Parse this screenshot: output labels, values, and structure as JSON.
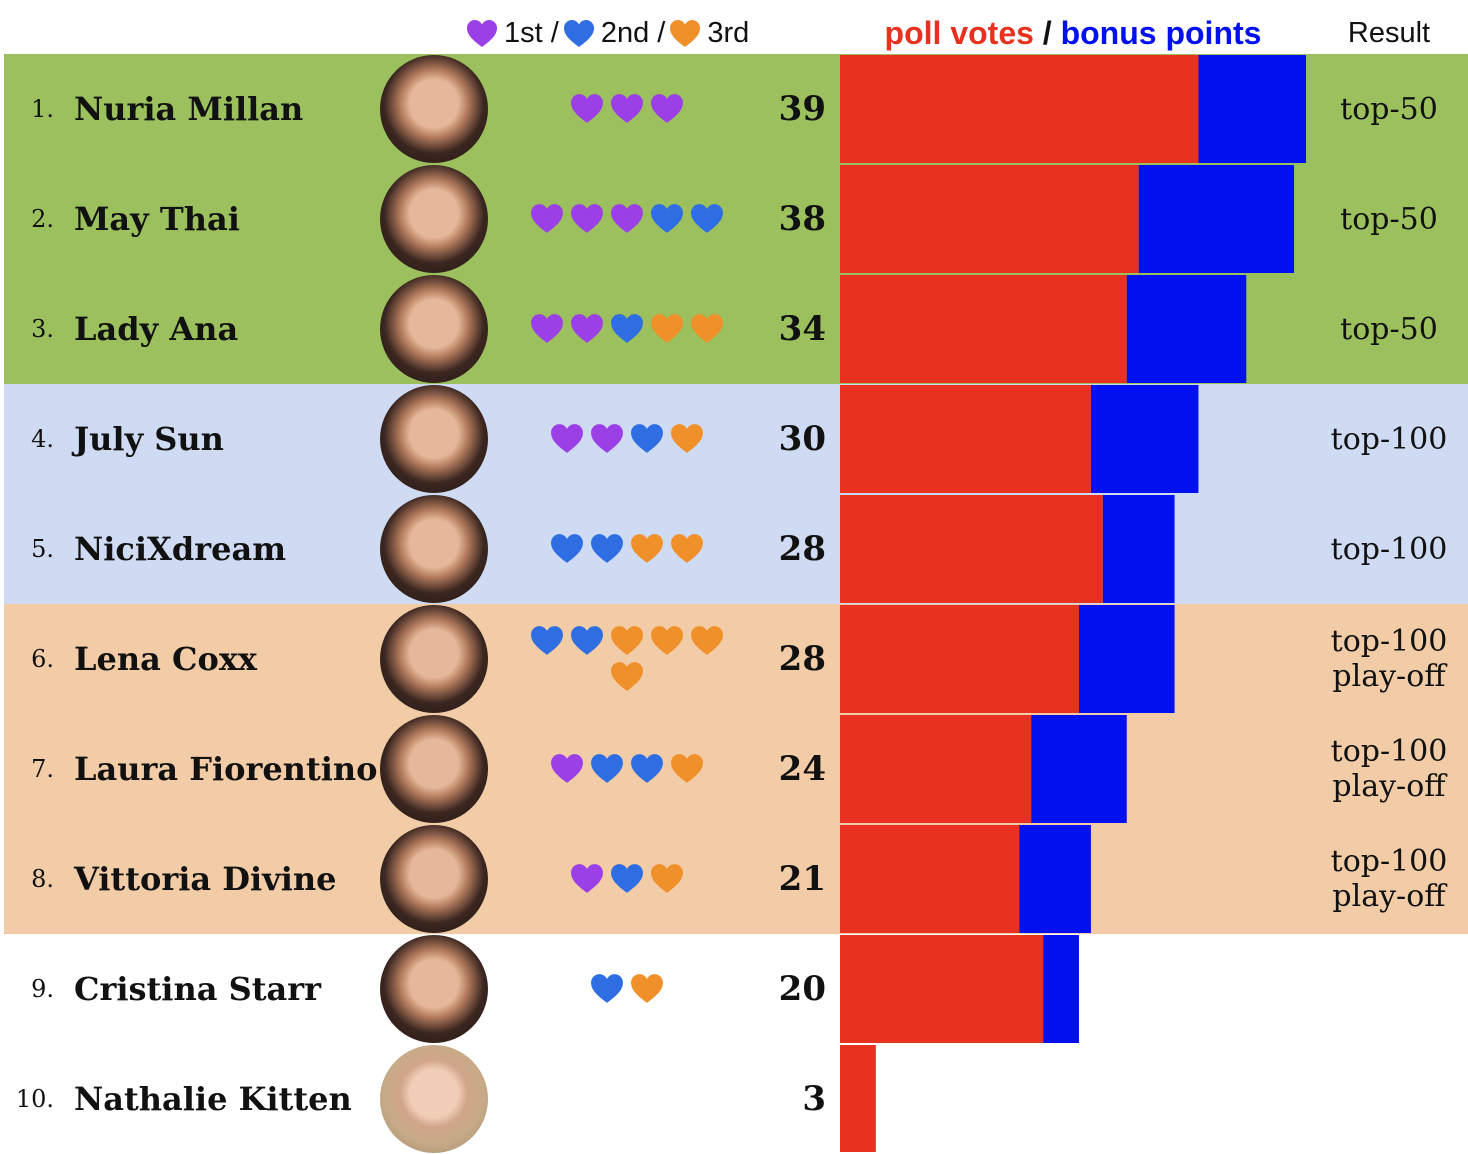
{
  "header": {
    "first": "1st",
    "second": "2nd",
    "third": "3rd",
    "slash": "/",
    "poll_votes": "poll votes",
    "bonus_points": "bonus points",
    "result": "Result"
  },
  "colors": {
    "first_heart": "#9b3fe6",
    "second_heart": "#2f6de2",
    "third_heart": "#f0902a",
    "poll_bar": "#e8321f",
    "bonus_bar": "#0010ee",
    "band_top50": "#9bc05d",
    "band_top100": "#cfdbf3",
    "band_playoff": "#f2cca6",
    "band_none": "#ffffff"
  },
  "chart_data": {
    "type": "bar",
    "orientation": "horizontal",
    "stacked": true,
    "categories": [
      "Nuria Millan",
      "May Thai",
      "Lady Ana",
      "July Sun",
      "NiciXdream",
      "Lena Coxx",
      "Laura Fiorentino",
      "Vittoria Divine",
      "Cristina Starr",
      "Nathalie Kitten"
    ],
    "series": [
      {
        "name": "poll votes",
        "values": [
          30,
          25,
          24,
          21,
          22,
          20,
          16,
          15,
          17,
          3
        ]
      },
      {
        "name": "bonus points",
        "values": [
          9,
          13,
          10,
          9,
          6,
          8,
          8,
          6,
          3,
          0
        ]
      }
    ],
    "totals": [
      39,
      38,
      34,
      30,
      28,
      28,
      24,
      21,
      20,
      3
    ],
    "xlim": [
      0,
      39
    ]
  },
  "rows": [
    {
      "rank": "1.",
      "name": "Nuria Millan",
      "hearts": [
        "first",
        "first",
        "first"
      ],
      "total": "39",
      "result": [
        "top-50"
      ],
      "band": "top50",
      "avatar": "dark"
    },
    {
      "rank": "2.",
      "name": "May Thai",
      "hearts": [
        "first",
        "first",
        "first",
        "second",
        "second"
      ],
      "total": "38",
      "result": [
        "top-50"
      ],
      "band": "top50",
      "avatar": "dark"
    },
    {
      "rank": "3.",
      "name": "Lady Ana",
      "hearts": [
        "first",
        "first",
        "second",
        "third",
        "third"
      ],
      "total": "34",
      "result": [
        "top-50"
      ],
      "band": "top50",
      "avatar": "dark"
    },
    {
      "rank": "4.",
      "name": "July Sun",
      "hearts": [
        "first",
        "first",
        "second",
        "third"
      ],
      "total": "30",
      "result": [
        "top-100"
      ],
      "band": "top100",
      "avatar": "dark"
    },
    {
      "rank": "5.",
      "name": "NiciXdream",
      "hearts": [
        "second",
        "second",
        "third",
        "third"
      ],
      "total": "28",
      "result": [
        "top-100"
      ],
      "band": "top100",
      "avatar": "dark"
    },
    {
      "rank": "6.",
      "name": "Lena Coxx",
      "hearts": [
        "second",
        "second",
        "third",
        "third",
        "third",
        "third"
      ],
      "total": "28",
      "result": [
        "top-100",
        "play-off"
      ],
      "band": "playoff",
      "avatar": "dark"
    },
    {
      "rank": "7.",
      "name": "Laura Fiorentino",
      "hearts": [
        "first",
        "second",
        "second",
        "third"
      ],
      "total": "24",
      "result": [
        "top-100",
        "play-off"
      ],
      "band": "playoff",
      "avatar": "dark"
    },
    {
      "rank": "8.",
      "name": "Vittoria Divine",
      "hearts": [
        "first",
        "second",
        "third"
      ],
      "total": "21",
      "result": [
        "top-100",
        "play-off"
      ],
      "band": "playoff",
      "avatar": "dark"
    },
    {
      "rank": "9.",
      "name": "Cristina Starr",
      "hearts": [
        "second",
        "third"
      ],
      "total": "20",
      "result": [],
      "band": "none",
      "avatar": "dark"
    },
    {
      "rank": "10.",
      "name": "Nathalie Kitten",
      "hearts": [],
      "total": "3",
      "result": [],
      "band": "none",
      "avatar": "blonde"
    }
  ]
}
